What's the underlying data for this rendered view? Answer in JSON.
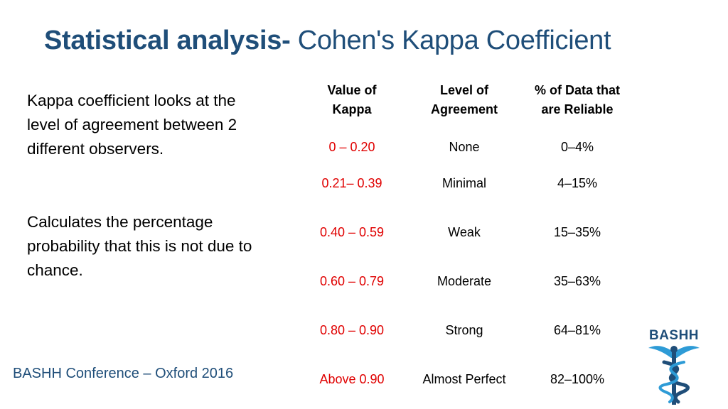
{
  "title": {
    "bold": "Statistical analysis-",
    "rest": " Cohen's Kappa Coefficient"
  },
  "paragraphs": [
    "Kappa coefficient looks at the level of agreement between 2 different observers.",
    "Calculates the percentage probability that this is not due to chance."
  ],
  "table": {
    "headers": [
      "Value of\nKappa",
      "Level of\nAgreement",
      "% of Data that\nare Reliable"
    ],
    "rows": [
      {
        "value": "0 – 0.20",
        "level": "None",
        "percent": "0–4%"
      },
      {
        "value": "0.21– 0.39",
        "level": "Minimal",
        "percent": "4–15%"
      },
      {
        "value": "0.40 – 0.59",
        "level": "Weak",
        "percent": "15–35%"
      },
      {
        "value": "0.60 – 0.79",
        "level": "Moderate",
        "percent": "35–63%"
      },
      {
        "value": "0.80 – 0.90",
        "level": "Strong",
        "percent": "64–81%"
      },
      {
        "value": "Above 0.90",
        "level": "Almost Perfect",
        "percent": "82–100%"
      }
    ]
  },
  "footer": "BASHH Conference – Oxford 2016",
  "logo": {
    "text": "BASHH",
    "icon": "caduceus-icon"
  },
  "colors": {
    "title": "#1f4e79",
    "value_text": "#e00000",
    "logo": "#1f4e79",
    "logo_accent": "#2e9bd6"
  }
}
